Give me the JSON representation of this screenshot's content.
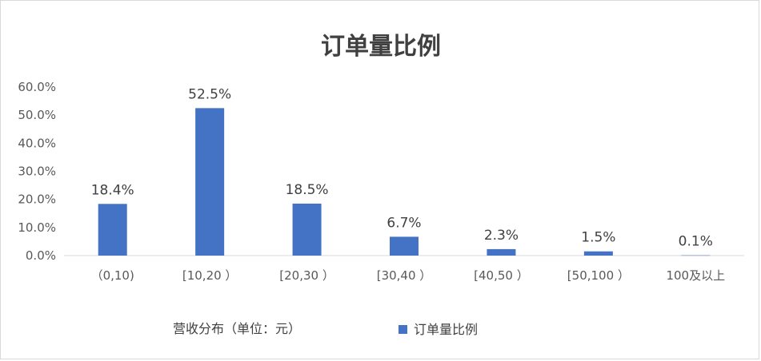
{
  "chart_data": {
    "type": "bar",
    "title": "订单量比例",
    "xlabel": "营收分布（单位：元）",
    "ylabel": "",
    "ylim": [
      0,
      60
    ],
    "yticks": [
      "0.0%",
      "10.0%",
      "20.0%",
      "30.0%",
      "40.0%",
      "50.0%",
      "60.0%"
    ],
    "categories": [
      "（0,10)",
      "[10,20 ）",
      "[20,30 ）",
      "[30,40 ）",
      "[40,50 ）",
      "[50,100 ）",
      "100及以上"
    ],
    "series": [
      {
        "name": "订单量比例",
        "values": [
          18.4,
          52.5,
          18.5,
          6.7,
          2.3,
          1.5,
          0.1
        ],
        "labels": [
          "18.4%",
          "52.5%",
          "18.5%",
          "6.7%",
          "2.3%",
          "1.5%",
          "0.1%"
        ],
        "color": "#4472c4"
      }
    ],
    "grid": false,
    "legend": "bottom"
  }
}
